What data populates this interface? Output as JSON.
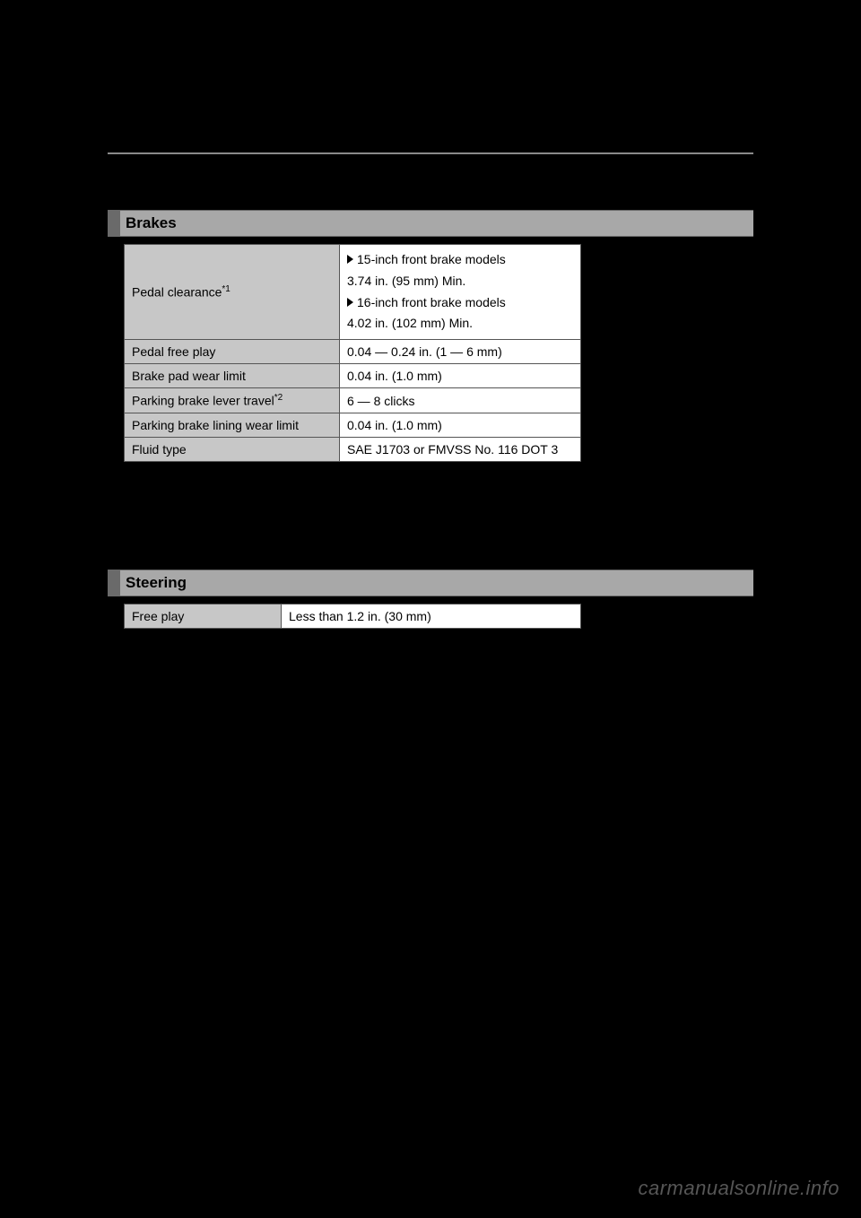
{
  "sections": {
    "brakes": {
      "title": "Brakes",
      "rows": {
        "pedal_clearance": {
          "label": "Pedal clearance",
          "sup": "*1",
          "line1_header": "15-inch front brake models",
          "line1_value": "3.74 in. (95 mm) Min.",
          "line2_header": "16-inch front brake models",
          "line2_value": "4.02 in. (102 mm) Min."
        },
        "pedal_free_play": {
          "label": "Pedal free play",
          "value": "0.04 — 0.24 in. (1 — 6 mm)"
        },
        "brake_pad_wear": {
          "label": "Brake pad wear limit",
          "value": "0.04 in. (1.0 mm)"
        },
        "parking_brake_travel": {
          "label": "Parking brake lever travel",
          "sup": "*2",
          "value": "6 — 8 clicks"
        },
        "parking_brake_lining": {
          "label": "Parking brake lining wear limit",
          "value": "0.04 in. (1.0 mm)"
        },
        "fluid_type": {
          "label": "Fluid type",
          "value": "SAE J1703 or FMVSS No. 116 DOT 3"
        }
      }
    },
    "steering": {
      "title": "Steering",
      "rows": {
        "free_play": {
          "label": "Free play",
          "value": "Less than 1.2 in. (30 mm)"
        }
      }
    }
  },
  "watermark": "carmanualsonline.info",
  "colors": {
    "page_bg": "#000000",
    "header_bg": "#a8a8a8",
    "header_bar": "#6a6a6a",
    "label_bg": "#c7c7c7",
    "value_bg": "#ffffff",
    "border": "#555555",
    "watermark": "#565656"
  }
}
